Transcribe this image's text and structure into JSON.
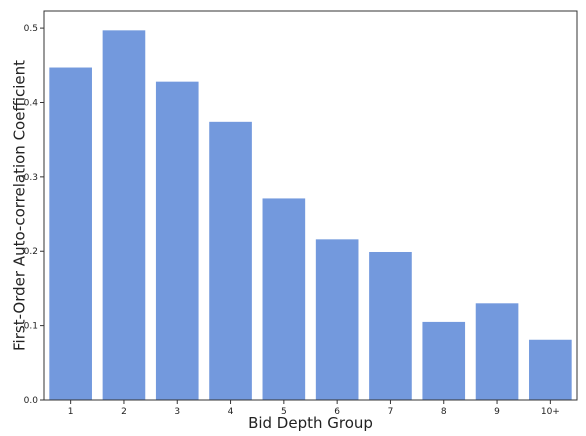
{
  "chart_data": {
    "type": "bar",
    "title": "",
    "xlabel": "Bid Depth Group",
    "ylabel": "First-Order Auto-correlation Coefficient",
    "categories": [
      "1",
      "2",
      "3",
      "4",
      "5",
      "6",
      "7",
      "8",
      "9",
      "10+"
    ],
    "values": [
      0.447,
      0.497,
      0.428,
      0.374,
      0.271,
      0.216,
      0.199,
      0.105,
      0.13,
      0.081
    ],
    "ylim": [
      0,
      0.523
    ],
    "yticks": [
      "0.0",
      "0.1",
      "0.2",
      "0.3",
      "0.4",
      "0.5"
    ],
    "grid": false,
    "legend": "none",
    "bar_color": "#7399dd",
    "axis_color": "#333333"
  }
}
